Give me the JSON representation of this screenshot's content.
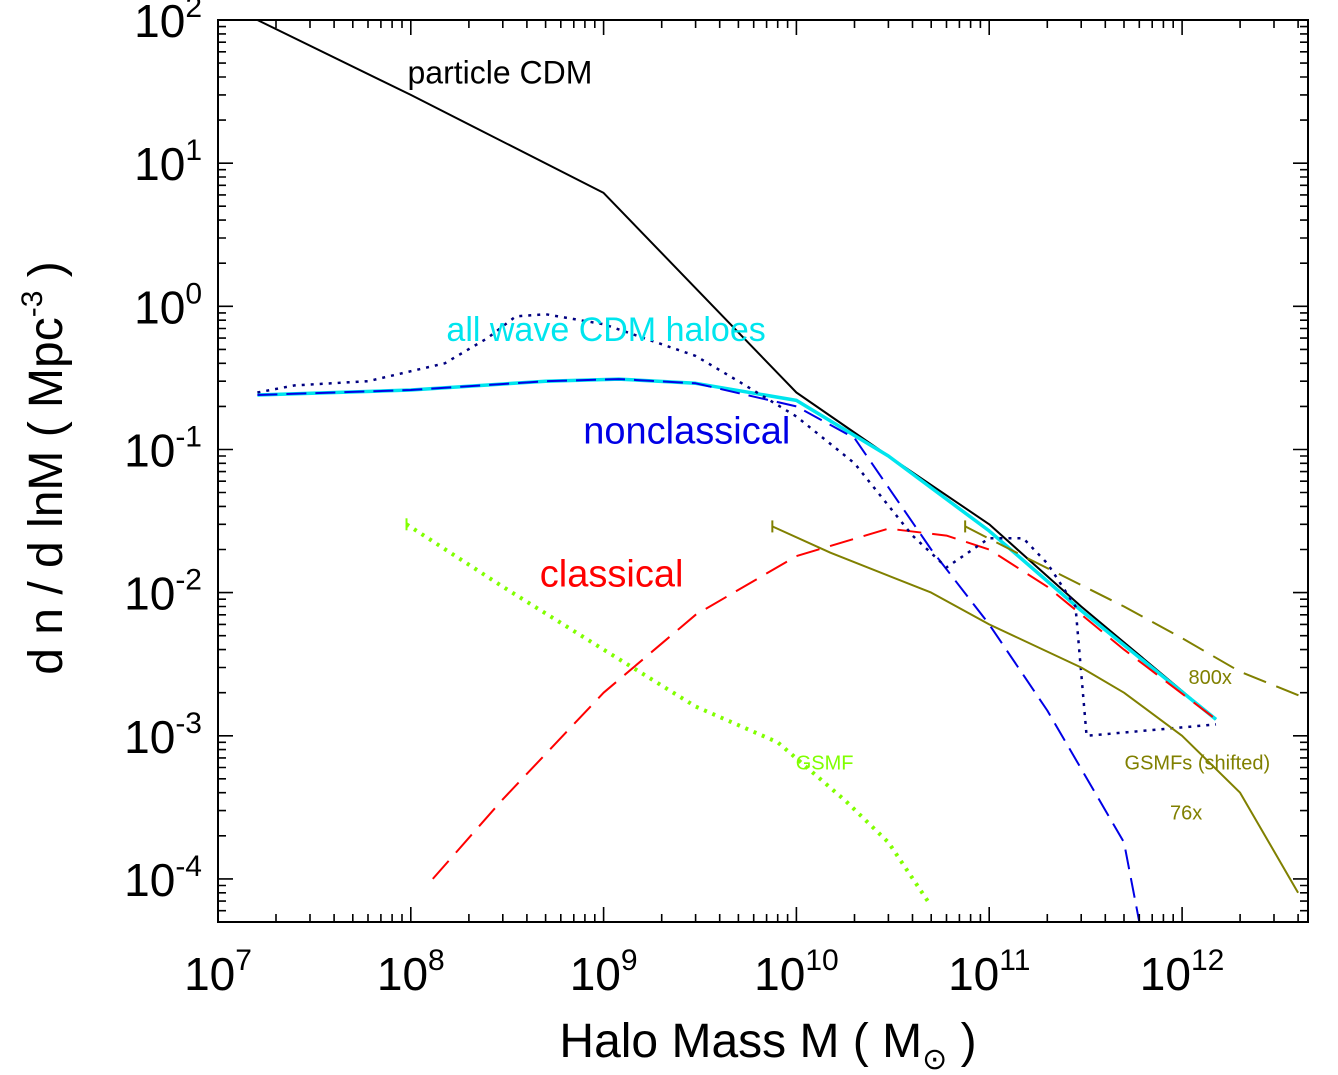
{
  "chart_data": {
    "type": "line",
    "title": "",
    "xlabel": {
      "base": "Halo Mass M  ( M",
      "sub": "⊙",
      "close": " )"
    },
    "ylabel": {
      "base": "d n / d lnM  ( Mpc",
      "sup": "-3",
      "close": " )"
    },
    "xscale": "log",
    "yscale": "log",
    "xlim": [
      10000000.0,
      4500000000000.0
    ],
    "ylim": [
      5e-05,
      100
    ],
    "xticks": [
      {
        "value": 10000000.0,
        "base": "10",
        "exp": "7"
      },
      {
        "value": 100000000.0,
        "base": "10",
        "exp": "8"
      },
      {
        "value": 1000000000.0,
        "base": "10",
        "exp": "9"
      },
      {
        "value": 10000000000.0,
        "base": "10",
        "exp": "10"
      },
      {
        "value": 100000000000.0,
        "base": "10",
        "exp": "11"
      },
      {
        "value": 1000000000000.0,
        "base": "10",
        "exp": "12"
      }
    ],
    "yticks": [
      {
        "value": 0.0001,
        "base": "10",
        "exp": "-4"
      },
      {
        "value": 0.001,
        "base": "10",
        "exp": "-3"
      },
      {
        "value": 0.01,
        "base": "10",
        "exp": "-2"
      },
      {
        "value": 0.1,
        "base": "10",
        "exp": "-1"
      },
      {
        "value": 1,
        "base": "10",
        "exp": "0"
      },
      {
        "value": 10,
        "base": "10",
        "exp": "1"
      },
      {
        "value": 100,
        "base": "10",
        "exp": "2"
      }
    ],
    "grid": false,
    "series": [
      {
        "name": "particle CDM",
        "color": "#000000",
        "dash": "",
        "width": 2,
        "points": [
          [
            16000000.0,
            100
          ],
          [
            100000000.0,
            30
          ],
          [
            1000000000.0,
            6.2
          ],
          [
            10000000000.0,
            0.25
          ],
          [
            30000000000.0,
            0.09
          ],
          [
            100000000000.0,
            0.03
          ],
          [
            300000000000.0,
            0.008
          ],
          [
            1500000000000.0,
            0.0013
          ]
        ]
      },
      {
        "name": "all wave CDM haloes",
        "color": "#00e5ee",
        "dash": "",
        "width": 3.5,
        "points": [
          [
            16000000.0,
            0.24
          ],
          [
            100000000.0,
            0.26
          ],
          [
            500000000.0,
            0.3
          ],
          [
            1200000000.0,
            0.31
          ],
          [
            3000000000.0,
            0.29
          ],
          [
            10000000000.0,
            0.22
          ],
          [
            30000000000.0,
            0.09
          ],
          [
            100000000000.0,
            0.027
          ],
          [
            300000000000.0,
            0.0075
          ],
          [
            1500000000000.0,
            0.0013
          ]
        ]
      },
      {
        "name": "nonclassical",
        "color": "#0000e6",
        "dash": "20 9",
        "width": 2,
        "points": [
          [
            16000000.0,
            0.24
          ],
          [
            100000000.0,
            0.26
          ],
          [
            500000000.0,
            0.3
          ],
          [
            1200000000.0,
            0.31
          ],
          [
            3000000000.0,
            0.29
          ],
          [
            10000000000.0,
            0.2
          ],
          [
            20000000000.0,
            0.12
          ],
          [
            50000000000.0,
            0.02
          ],
          [
            100000000000.0,
            0.006
          ],
          [
            200000000000.0,
            0.0015
          ],
          [
            500000000000.0,
            0.00018
          ],
          [
            600000000000.0,
            5e-05
          ]
        ]
      },
      {
        "name": "classical",
        "color": "#ff0000",
        "dash": "24 11",
        "width": 2,
        "points": [
          [
            130000000.0,
            0.0001
          ],
          [
            300000000.0,
            0.00036
          ],
          [
            1000000000.0,
            0.002
          ],
          [
            3000000000.0,
            0.007
          ],
          [
            10000000000.0,
            0.018
          ],
          [
            30000000000.0,
            0.028
          ],
          [
            60000000000.0,
            0.025
          ],
          [
            100000000000.0,
            0.02
          ],
          [
            200000000000.0,
            0.011
          ],
          [
            500000000000.0,
            0.004
          ],
          [
            1500000000000.0,
            0.0013
          ]
        ]
      },
      {
        "name": "dotted wave CDM haloes",
        "color": "#000080",
        "dash": "3 6",
        "width": 2.5,
        "points": [
          [
            16000000.0,
            0.25
          ],
          [
            25000000.0,
            0.28
          ],
          [
            60000000.0,
            0.3
          ],
          [
            150000000.0,
            0.4
          ],
          [
            250000000.0,
            0.6
          ],
          [
            350000000.0,
            0.85
          ],
          [
            500000000.0,
            0.88
          ],
          [
            1000000000.0,
            0.75
          ],
          [
            3000000000.0,
            0.45
          ],
          [
            5000000000.0,
            0.3
          ],
          [
            10000000000.0,
            0.17
          ],
          [
            20000000000.0,
            0.08
          ],
          [
            40000000000.0,
            0.025
          ],
          [
            60000000000.0,
            0.015
          ],
          [
            100000000000.0,
            0.024
          ],
          [
            150000000000.0,
            0.024
          ],
          [
            200000000000.0,
            0.016
          ],
          [
            280000000000.0,
            0.008
          ],
          [
            320000000000.0,
            0.001
          ],
          [
            1500000000000.0,
            0.0012
          ]
        ]
      },
      {
        "name": "GSMF",
        "color": "#80ff00",
        "dash": "3 6",
        "width": 4,
        "points": [
          [
            95000000.0,
            0.03
          ],
          [
            300000000.0,
            0.011
          ],
          [
            1000000000.0,
            0.004
          ],
          [
            3000000000.0,
            0.0016
          ],
          [
            8000000000.0,
            0.0009
          ],
          [
            18000000000.0,
            0.00035
          ],
          [
            30000000000.0,
            0.00018
          ],
          [
            48000000000.0,
            7e-05
          ]
        ]
      },
      {
        "name": "GSMFs (shifted) 76x",
        "color": "#808000",
        "dash": "",
        "width": 2,
        "points": [
          [
            7500000000.0,
            0.029
          ],
          [
            15000000000.0,
            0.019
          ],
          [
            50000000000.0,
            0.01
          ],
          [
            100000000000.0,
            0.006
          ],
          [
            300000000000.0,
            0.003
          ],
          [
            500000000000.0,
            0.002
          ],
          [
            1000000000000.0,
            0.001
          ],
          [
            2000000000000.0,
            0.0004
          ],
          [
            4000000000000.0,
            8e-05
          ]
        ]
      },
      {
        "name": "800x",
        "color": "#808000",
        "dash": "24 11",
        "width": 2,
        "points": [
          [
            75000000000.0,
            0.029
          ],
          [
            150000000000.0,
            0.018
          ],
          [
            500000000000.0,
            0.008
          ],
          [
            1000000000000.0,
            0.0048
          ],
          [
            2000000000000.0,
            0.0028
          ],
          [
            4500000000000.0,
            0.0018
          ]
        ]
      }
    ],
    "error_caps": [
      {
        "x": 95000000.0,
        "y": 0.03,
        "color": "#80ff00"
      },
      {
        "x": 7500000000.0,
        "y": 0.029,
        "color": "#808000"
      },
      {
        "x": 75000000000.0,
        "y": 0.029,
        "color": "#808000"
      }
    ],
    "annotations": [
      {
        "text": "particle CDM",
        "x": 290000000.0,
        "y": 36,
        "color": "#000000",
        "size": 32
      },
      {
        "text": "all wave CDM haloes",
        "x": 1030000000.0,
        "y": 0.57,
        "color": "#00e5ee",
        "size": 34
      },
      {
        "text": "nonclassical",
        "x": 2700000000.0,
        "y": 0.11,
        "color": "#0000e6",
        "size": 38
      },
      {
        "text": "classical",
        "x": 1100000000.0,
        "y": 0.011,
        "color": "#ff0000",
        "size": 38
      },
      {
        "text": "GSMF",
        "x": 14000000000.0,
        "y": 0.00058,
        "color": "#80ff00",
        "size": 20
      },
      {
        "text": "GSMFs (shifted)",
        "x": 1200000000000.0,
        "y": 0.00058,
        "color": "#808000",
        "size": 20
      },
      {
        "text": "76x",
        "x": 1050000000000.0,
        "y": 0.00026,
        "color": "#808000",
        "size": 20
      },
      {
        "text": "800x",
        "x": 1400000000000.0,
        "y": 0.0023,
        "color": "#808000",
        "size": 20
      }
    ]
  }
}
